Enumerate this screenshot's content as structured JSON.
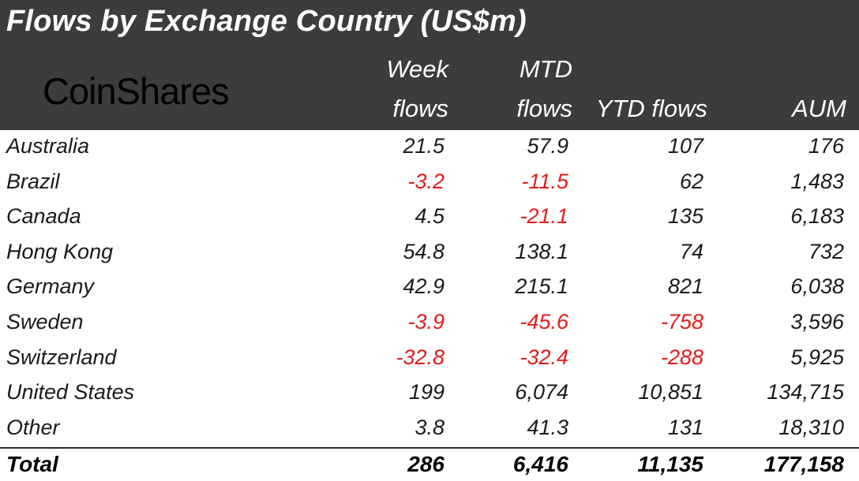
{
  "title": "Flows by Exchange Country (US$m)",
  "logo": "CoinShares",
  "headers": {
    "week_line1": "Week",
    "week_line2": "flows",
    "mtd_line1": "MTD",
    "mtd_line2": "flows",
    "ytd": "YTD flows",
    "aum": "AUM"
  },
  "rows": [
    {
      "country": "Australia",
      "week": "21.5",
      "mtd": "57.9",
      "ytd": "107",
      "aum": "176"
    },
    {
      "country": "Brazil",
      "week": "-3.2",
      "mtd": "-11.5",
      "ytd": "62",
      "aum": "1,483"
    },
    {
      "country": "Canada",
      "week": "4.5",
      "mtd": "-21.1",
      "ytd": "135",
      "aum": "6,183"
    },
    {
      "country": "Hong Kong",
      "week": "54.8",
      "mtd": "138.1",
      "ytd": "74",
      "aum": "732"
    },
    {
      "country": "Germany",
      "week": "42.9",
      "mtd": "215.1",
      "ytd": "821",
      "aum": "6,038"
    },
    {
      "country": "Sweden",
      "week": "-3.9",
      "mtd": "-45.6",
      "ytd": "-758",
      "aum": "3,596"
    },
    {
      "country": "Switzerland",
      "week": "-32.8",
      "mtd": "-32.4",
      "ytd": "-288",
      "aum": "5,925"
    },
    {
      "country": "United States",
      "week": "199",
      "mtd": "6,074",
      "ytd": "10,851",
      "aum": "134,715"
    },
    {
      "country": "Other",
      "week": "3.8",
      "mtd": "41.3",
      "ytd": "131",
      "aum": "18,310"
    }
  ],
  "total": {
    "label": "Total",
    "week": "286",
    "mtd": "6,416",
    "ytd": "11,135",
    "aum": "177,158"
  },
  "colors": {
    "header_bg": "#3c3c3c",
    "negative": "#e41b1b",
    "text": "#1a1a1a"
  }
}
